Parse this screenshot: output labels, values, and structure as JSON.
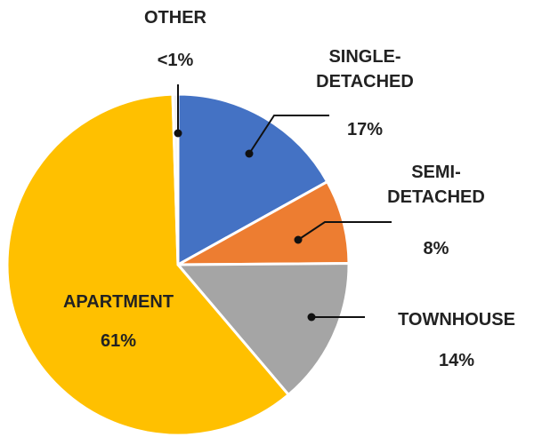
{
  "chart_data": {
    "type": "pie",
    "categories": [
      "SINGLE-DETACHED",
      "SEMI-DETACHED",
      "TOWNHOUSE",
      "APARTMENT",
      "OTHER"
    ],
    "values": [
      17,
      8,
      14,
      61,
      0.5
    ],
    "value_labels": [
      "17%",
      "8%",
      "14%",
      "61%",
      "<1%"
    ],
    "colors": [
      "#4472c4",
      "#ed7d31",
      "#a5a5a5",
      "#ffc000",
      "#f2f2f2"
    ]
  }
}
